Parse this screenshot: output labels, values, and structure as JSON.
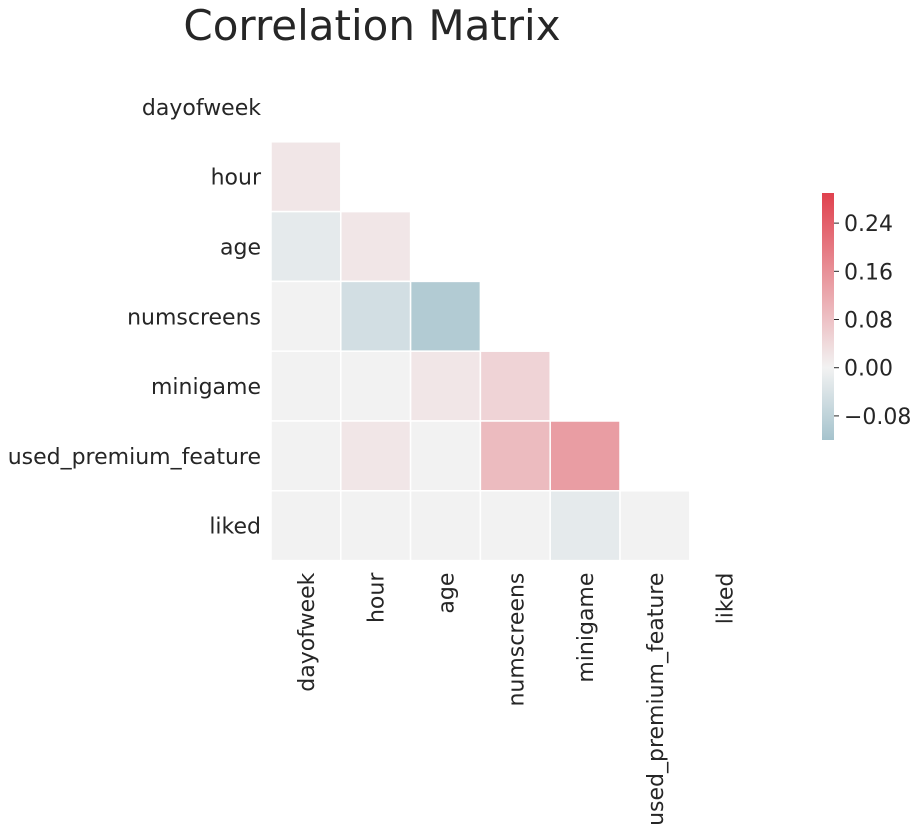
{
  "chart_data": {
    "type": "heatmap",
    "title": "Correlation Matrix",
    "labels": [
      "dayofweek",
      "hour",
      "age",
      "numscreens",
      "minigame",
      "used_premium_feature",
      "liked"
    ],
    "mask": "upper-triangle-including-diagonal",
    "lower_triangle_values": [
      [],
      [
        0.02
      ],
      [
        -0.02,
        0.02
      ],
      [
        0.0,
        -0.05,
        -0.1
      ],
      [
        0.0,
        0.0,
        0.02,
        0.05
      ],
      [
        0.0,
        0.02,
        0.0,
        0.09,
        0.14
      ],
      [
        0.0,
        0.0,
        0.0,
        0.0,
        -0.02,
        0.0
      ]
    ],
    "colorbar": {
      "min": -0.12,
      "max": 0.29,
      "ticks": [
        0.24,
        0.16,
        0.08,
        0.0,
        -0.08
      ],
      "tick_labels": [
        "0.24",
        "0.16",
        "0.08",
        "0.00",
        "−0.08"
      ],
      "colors": {
        "negative": "#a5c3cd",
        "center": "#f2f2f2",
        "positive": "#e0414e"
      }
    },
    "grid": false
  }
}
